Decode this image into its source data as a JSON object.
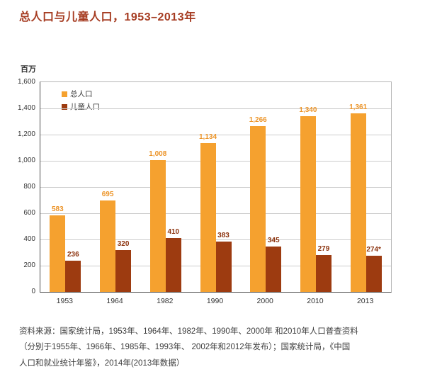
{
  "title": "总人口与儿童人口，1953–2013年",
  "y_axis_unit": "百万",
  "chart_data": {
    "type": "bar",
    "title": "总人口与儿童人口，1953–2013年",
    "ylabel": "百万",
    "categories": [
      "1953",
      "1964",
      "1982",
      "1990",
      "2000",
      "2010",
      "2013"
    ],
    "series": [
      {
        "name": "总人口",
        "color": "#f5a12f",
        "label_color": "#ec9428",
        "values": [
          583,
          695,
          1008,
          1134,
          1266,
          1340,
          1361
        ],
        "labels": [
          "583",
          "695",
          "1,008",
          "1,134",
          "1,266",
          "1,340",
          "1,361"
        ]
      },
      {
        "name": "儿童人口",
        "color": "#9d3b10",
        "label_color": "#8c330e",
        "values": [
          236,
          320,
          410,
          383,
          345,
          279,
          274
        ],
        "labels": [
          "236",
          "320",
          "410",
          "383",
          "345",
          "279",
          "274*"
        ]
      }
    ],
    "ylim": [
      0,
      1600
    ],
    "yticks": [
      0,
      200,
      400,
      600,
      800,
      1000,
      1200,
      1400,
      1600
    ],
    "ytick_labels": [
      "0",
      "200",
      "400",
      "600",
      "800",
      "1,000",
      "1,200",
      "1,400",
      "1,600"
    ],
    "grid": true,
    "legend_position": "top-left-inside"
  },
  "source_note": {
    "lines": [
      "资料来源：国家统计局，1953年、1964年、1982年、1990年、2000年 和2010年人口普查资料",
      "（分别于1955年、1966年、1985年、1993年、 2002年和2012年发布）；国家统计局，《中国",
      "人口和就业统计年鉴》，2014年(2013年数据）"
    ]
  }
}
